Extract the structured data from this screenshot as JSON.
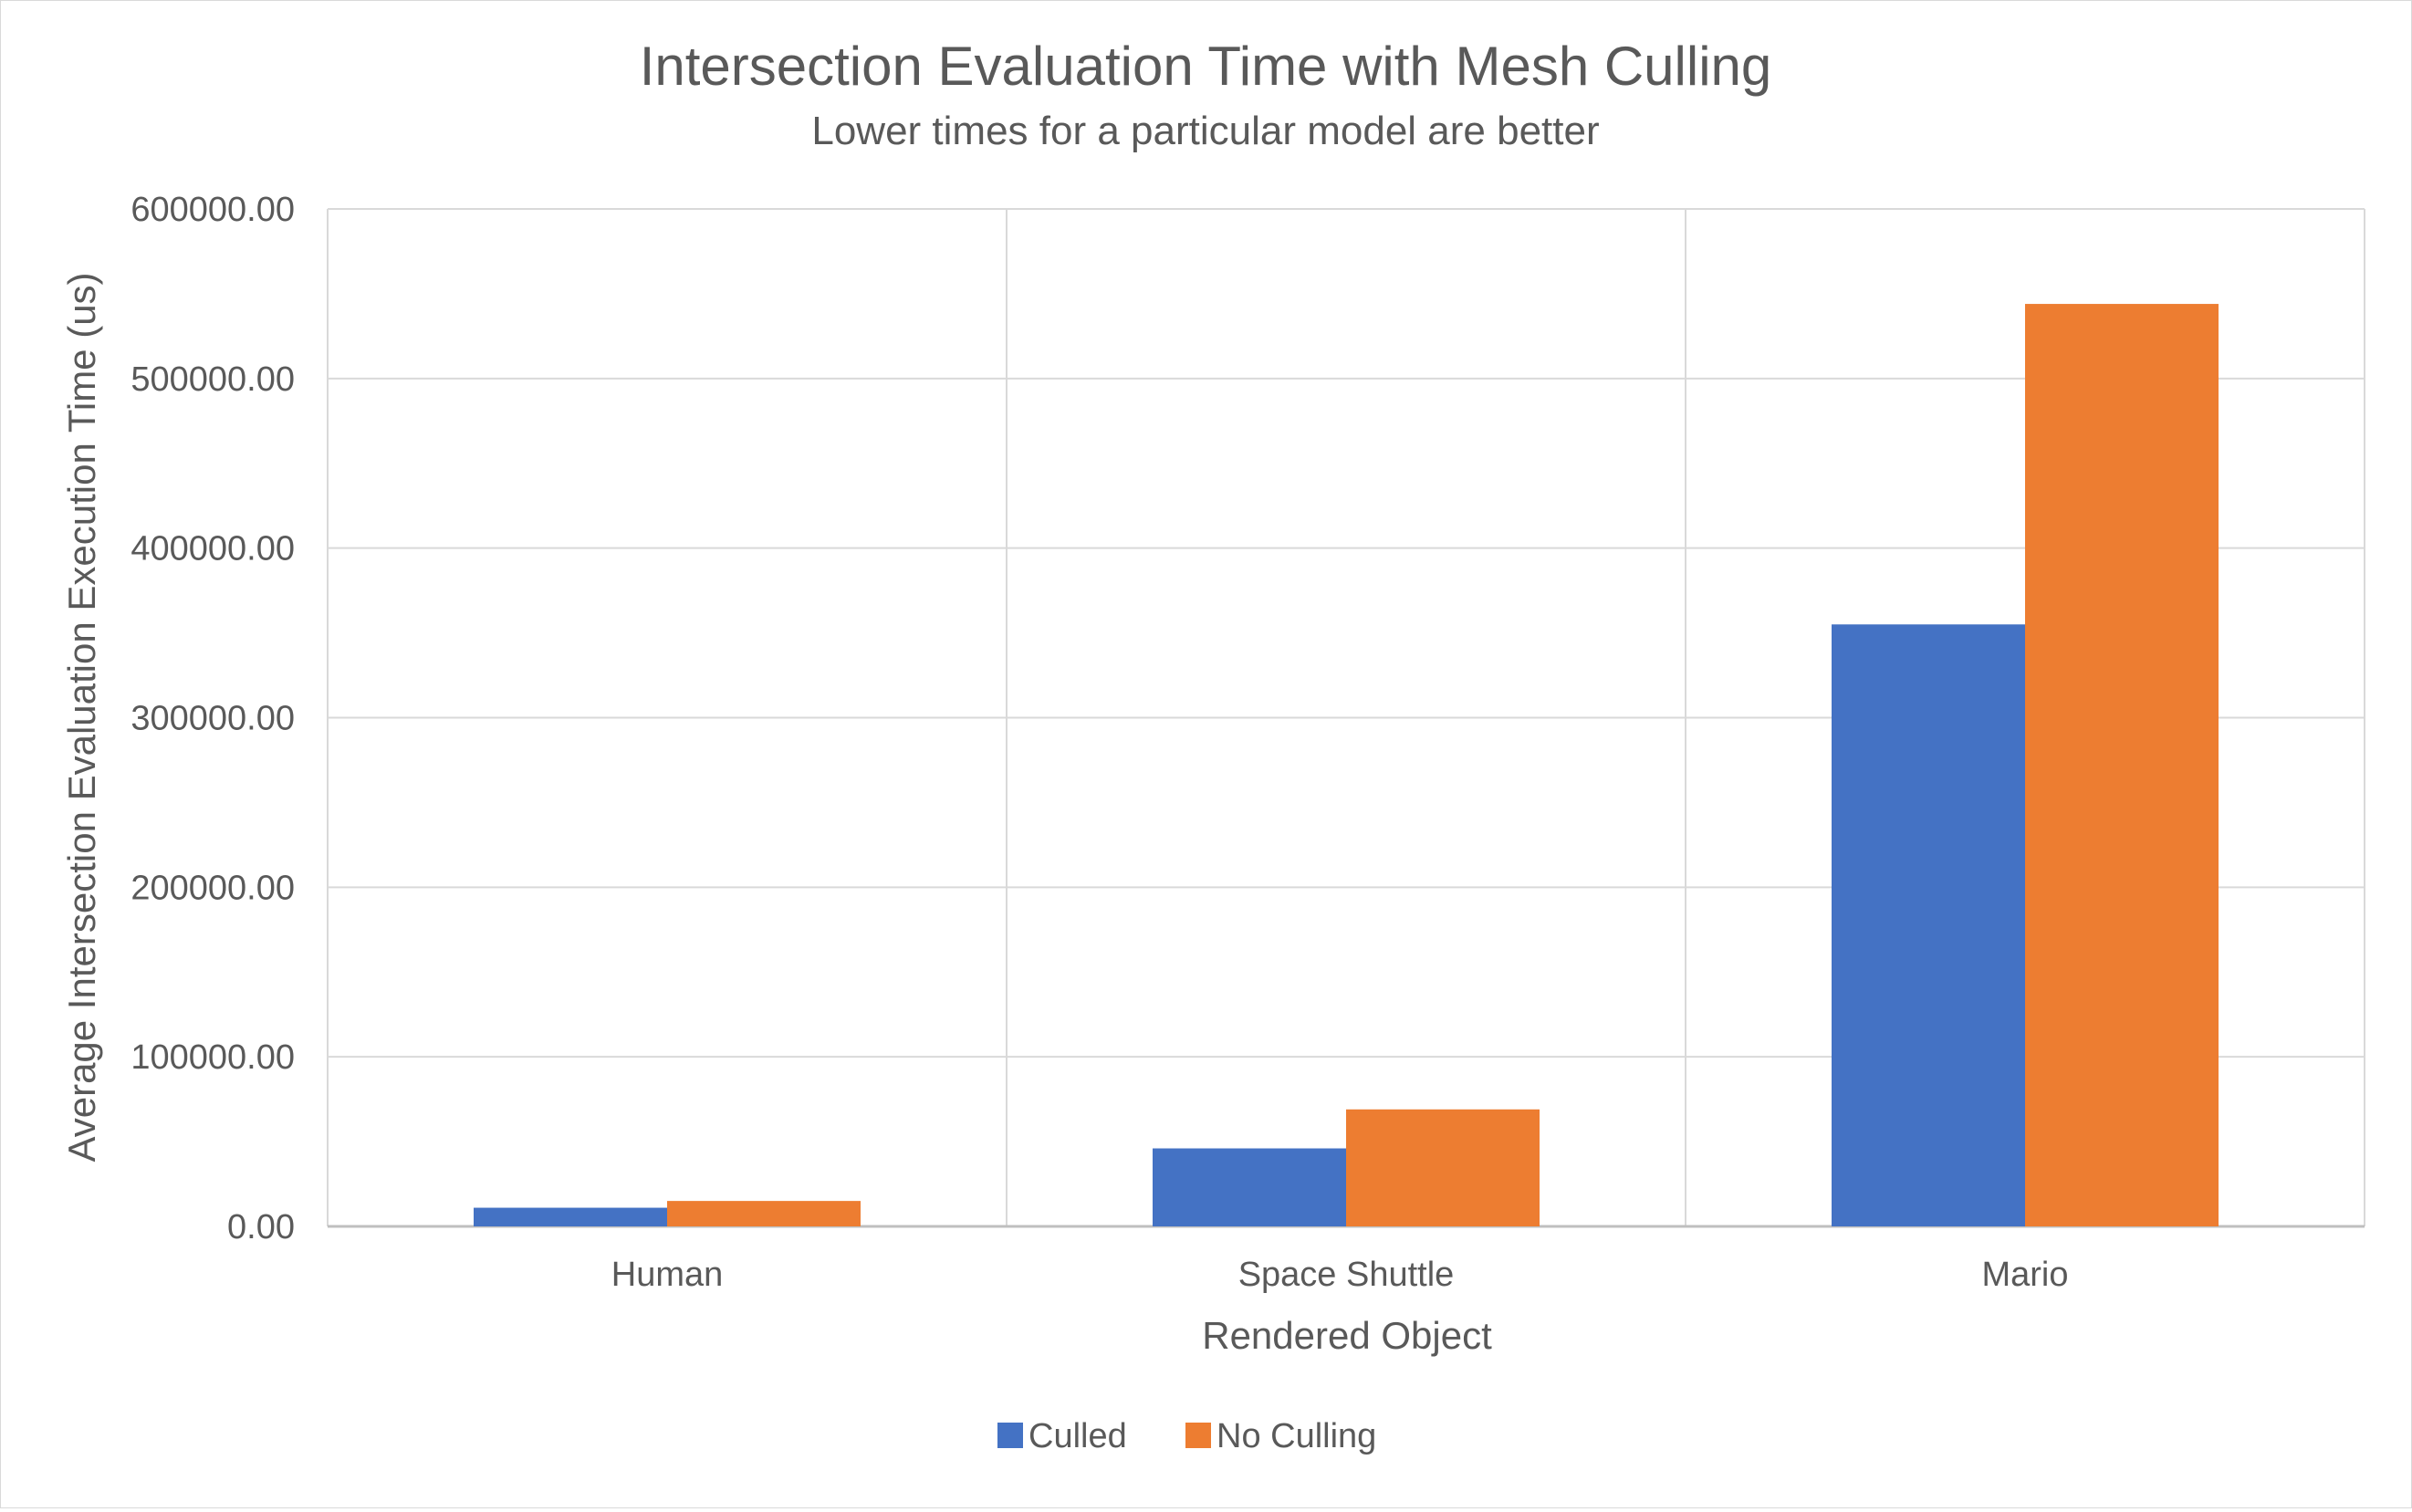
{
  "chart_data": {
    "type": "bar",
    "title": "Intersection Evaluation Time with Mesh Culling",
    "subtitle": "Lower times for a particular model are better",
    "xlabel": "Rendered Object",
    "ylabel": "Average Intersection Evaluation Execution Time (us)",
    "categories": [
      "Human",
      "Space Shuttle",
      "Mario"
    ],
    "series": [
      {
        "name": "Culled",
        "color": "#4472C4",
        "values": [
          11000,
          46000,
          355000
        ]
      },
      {
        "name": "No Culling",
        "color": "#ED7D31",
        "values": [
          15000,
          69000,
          544000
        ]
      }
    ],
    "ylim": [
      0,
      600000
    ],
    "yticks": [
      "0.00",
      "100000.00",
      "200000.00",
      "300000.00",
      "400000.00",
      "500000.00",
      "600000.00"
    ],
    "grid": true,
    "legend_position": "bottom",
    "colors": {
      "text": "#595959",
      "grid": "#d9d9d9",
      "axis": "#bfbfbf"
    }
  }
}
